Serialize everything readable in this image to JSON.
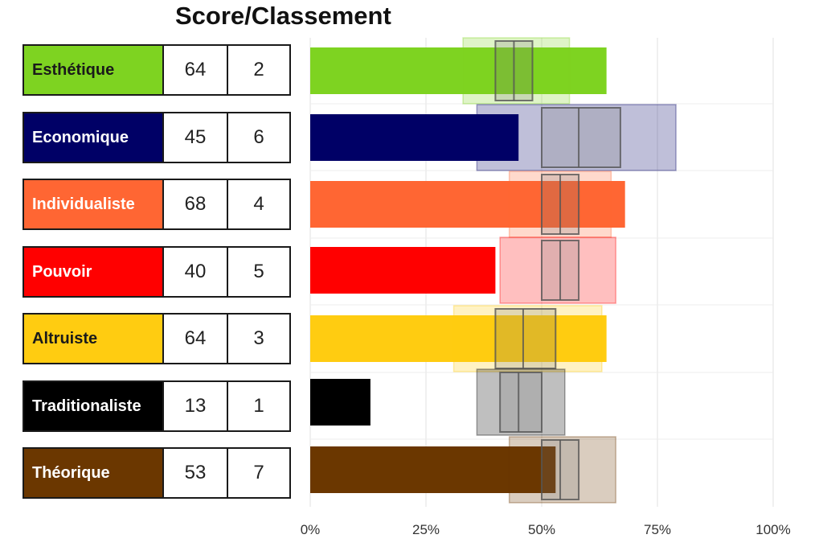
{
  "title": "Score/Classement",
  "rows": [
    {
      "name": "Esthétique",
      "score": "64",
      "rank": "2",
      "color": "#7ed321",
      "text_color": "#1a1a1a"
    },
    {
      "name": "Economique",
      "score": "45",
      "rank": "6",
      "color": "#000066",
      "text_color": "#ffffff"
    },
    {
      "name": "Individualiste",
      "score": "68",
      "rank": "4",
      "color": "#ff6633",
      "text_color": "#ffffff"
    },
    {
      "name": "Pouvoir",
      "score": "40",
      "rank": "5",
      "color": "#ff0000",
      "text_color": "#ffffff"
    },
    {
      "name": "Altruiste",
      "score": "64",
      "rank": "3",
      "color": "#ffcc11",
      "text_color": "#1a1a1a"
    },
    {
      "name": "Traditionaliste",
      "score": "13",
      "rank": "1",
      "color": "#000000",
      "text_color": "#ffffff"
    },
    {
      "name": "Théorique",
      "score": "53",
      "rank": "7",
      "color": "#6b3700",
      "text_color": "#ffffff"
    }
  ],
  "chart_data": {
    "type": "bar",
    "orientation": "horizontal",
    "categories": [
      "Esthétique",
      "Economique",
      "Individualiste",
      "Pouvoir",
      "Altruiste",
      "Traditionaliste",
      "Théorique"
    ],
    "values": [
      64,
      45,
      68,
      40,
      64,
      13,
      53
    ],
    "xlim": [
      0,
      100
    ],
    "x_ticks": [
      "0%",
      "25%",
      "50%",
      "75%",
      "100%"
    ],
    "grid": "vertical",
    "norm_outer_range": [
      [
        33,
        56
      ],
      [
        36,
        79
      ],
      [
        43,
        65
      ],
      [
        41,
        66
      ],
      [
        31,
        63
      ],
      [
        36,
        55
      ],
      [
        43,
        66
      ]
    ],
    "norm_inner_range": [
      [
        40,
        48
      ],
      [
        50,
        67
      ],
      [
        50,
        58
      ],
      [
        50,
        58
      ],
      [
        40,
        53
      ],
      [
        41,
        50
      ],
      [
        50,
        58
      ]
    ],
    "norm_median": [
      44,
      58,
      54,
      54,
      46,
      45,
      54
    ],
    "colors": [
      "#7ed321",
      "#000066",
      "#ff6633",
      "#ff0000",
      "#ffcc11",
      "#000000",
      "#6b3700"
    ]
  }
}
